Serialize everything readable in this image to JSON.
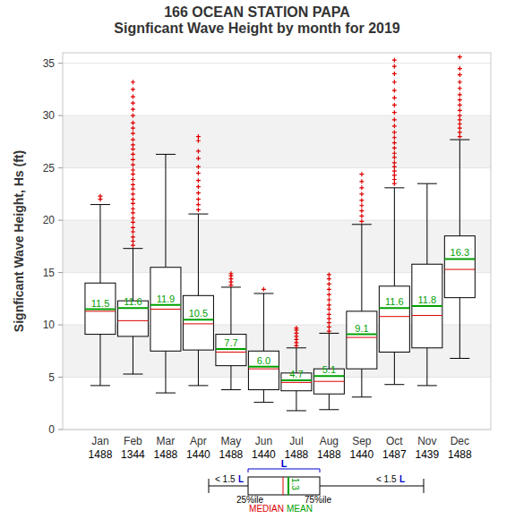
{
  "chart_data": {
    "type": "box",
    "title": "166   OCEAN STATION PAPA",
    "subtitle": "Signficant Wave Height by month for 2019",
    "y_label": "Signficant Wave Height, Hs (ft)",
    "categories": [
      "Jan",
      "Feb",
      "Mar",
      "Apr",
      "May",
      "Jun",
      "Jul",
      "Aug",
      "Sep",
      "Oct",
      "Nov",
      "Dec"
    ],
    "counts": [
      1488,
      1344,
      1488,
      1440,
      1488,
      1440,
      1488,
      1488,
      1440,
      1487,
      1439,
      1488
    ],
    "whisker_low": [
      4.2,
      5.3,
      3.5,
      4.2,
      3.8,
      2.6,
      1.8,
      1.9,
      3.1,
      4.3,
      4.2,
      6.8
    ],
    "q1": [
      9.1,
      8.9,
      7.5,
      7.6,
      6.1,
      3.8,
      3.7,
      3.4,
      5.8,
      7.4,
      7.8,
      12.6
    ],
    "median": [
      11.3,
      10.4,
      11.5,
      10.1,
      7.4,
      5.8,
      4.5,
      4.6,
      8.8,
      10.8,
      10.9,
      15.3
    ],
    "mean": [
      11.5,
      11.6,
      11.9,
      10.5,
      7.7,
      6.0,
      4.7,
      5.1,
      9.1,
      11.6,
      11.8,
      16.3
    ],
    "mean_labels": [
      "11.5",
      "11.6",
      "11.9",
      "10.5",
      "7.7",
      "6.0",
      "4.7",
      "5.1",
      "9.1",
      "11.6",
      "11.8",
      "16.3"
    ],
    "q3": [
      14.0,
      12.3,
      15.5,
      12.8,
      9.1,
      7.5,
      5.4,
      5.8,
      11.3,
      13.7,
      15.8,
      18.5
    ],
    "whisker_high": [
      21.5,
      17.3,
      26.3,
      20.6,
      13.6,
      13.0,
      7.8,
      9.2,
      19.6,
      23.1,
      23.5,
      27.7
    ],
    "outliers": [
      [
        22.0,
        22.3
      ],
      [
        17.6,
        18.0,
        18.4,
        18.9,
        19.3,
        19.8,
        20.2,
        20.7,
        21.1,
        21.6,
        22.0,
        22.5,
        23.0,
        23.4,
        23.9,
        24.4,
        24.8,
        25.3,
        25.8,
        26.3,
        26.8,
        27.2,
        27.7,
        28.3,
        28.8,
        29.3,
        30.0,
        30.6,
        31.2,
        31.8,
        32.5,
        33.2
      ],
      [],
      [
        21.0,
        21.5,
        22.0,
        22.6,
        23.2,
        23.8,
        24.5,
        25.1,
        25.9,
        26.6,
        27.6,
        28.0
      ],
      [
        13.8,
        14.1,
        14.4,
        14.7,
        14.9
      ],
      [
        13.4
      ],
      [
        8.0,
        8.3,
        8.6,
        8.9,
        9.2,
        9.5,
        9.7
      ],
      [
        9.4,
        9.8,
        10.2,
        10.6,
        11.0,
        11.5,
        11.9,
        12.4,
        12.9,
        13.4,
        13.9,
        14.4,
        14.8
      ],
      [
        19.9,
        20.4,
        20.9,
        21.4,
        21.9,
        22.5,
        23.1,
        23.7,
        24.4
      ],
      [
        23.5,
        23.9,
        24.3,
        24.7,
        25.1,
        25.5,
        26.0,
        26.4,
        26.9,
        27.4,
        27.9,
        28.4,
        29.0,
        29.6,
        30.3,
        31.0,
        31.7,
        32.4,
        33.2,
        34.0,
        34.7,
        35.3
      ],
      [],
      [
        28.0,
        28.4,
        28.8,
        29.2,
        29.6,
        30.0,
        30.5,
        31.0,
        31.5,
        32.0,
        32.6,
        33.2,
        33.9,
        34.5,
        35.6
      ]
    ],
    "ylim": [
      0,
      36
    ],
    "yticks": [
      0,
      5,
      10,
      15,
      20,
      25,
      30,
      35
    ],
    "grid": true,
    "data_labels": true,
    "legend_key": {
      "whisker_text": "< 1.5",
      "iqr": "L",
      "q1_text": "25%ile",
      "q3_text": "75%ile",
      "median_text": "MEDIAN",
      "mean_text": "MEAN",
      "mean_sample": "1.3"
    }
  }
}
